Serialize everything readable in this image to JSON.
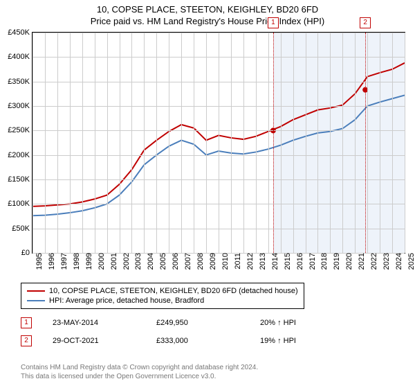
{
  "title": "10, COPSE PLACE, STEETON, KEIGHLEY, BD20 6FD",
  "subtitle": "Price paid vs. HM Land Registry's House Price Index (HPI)",
  "chart": {
    "type": "line",
    "xlim": [
      1995,
      2025
    ],
    "ylim": [
      0,
      450000
    ],
    "y_ticks": [
      0,
      50000,
      100000,
      150000,
      200000,
      250000,
      300000,
      350000,
      400000,
      450000
    ],
    "y_tick_labels": [
      "£0",
      "£50K",
      "£100K",
      "£150K",
      "£200K",
      "£250K",
      "£300K",
      "£350K",
      "£400K",
      "£450K"
    ],
    "x_ticks": [
      1995,
      1996,
      1997,
      1998,
      1999,
      2000,
      2001,
      2002,
      2003,
      2004,
      2005,
      2006,
      2007,
      2008,
      2009,
      2010,
      2011,
      2012,
      2013,
      2014,
      2015,
      2016,
      2017,
      2018,
      2019,
      2020,
      2021,
      2022,
      2023,
      2024,
      2025
    ],
    "grid_color": "#cccccc",
    "background_color": "#ffffff",
    "shaded_bands": [
      {
        "from": 2014.4,
        "to": 2025,
        "color": "#eef3fa"
      }
    ],
    "series": [
      {
        "name": "10, COPSE PLACE, STEETON, KEIGHLEY, BD20 6FD (detached house)",
        "color": "#c00000",
        "width": 2,
        "data": [
          [
            1995,
            95000
          ],
          [
            1996,
            96000
          ],
          [
            1997,
            98000
          ],
          [
            1998,
            100000
          ],
          [
            1999,
            104000
          ],
          [
            2000,
            110000
          ],
          [
            2001,
            118000
          ],
          [
            2002,
            140000
          ],
          [
            2003,
            170000
          ],
          [
            2004,
            210000
          ],
          [
            2005,
            230000
          ],
          [
            2006,
            248000
          ],
          [
            2007,
            262000
          ],
          [
            2008,
            255000
          ],
          [
            2009,
            230000
          ],
          [
            2010,
            240000
          ],
          [
            2011,
            235000
          ],
          [
            2012,
            232000
          ],
          [
            2013,
            238000
          ],
          [
            2014,
            248000
          ],
          [
            2015,
            258000
          ],
          [
            2016,
            272000
          ],
          [
            2017,
            282000
          ],
          [
            2018,
            292000
          ],
          [
            2019,
            296000
          ],
          [
            2020,
            302000
          ],
          [
            2021,
            325000
          ],
          [
            2022,
            360000
          ],
          [
            2023,
            368000
          ],
          [
            2024,
            375000
          ],
          [
            2025,
            388000
          ]
        ]
      },
      {
        "name": "HPI: Average price, detached house, Bradford",
        "color": "#4a7ebb",
        "width": 2,
        "data": [
          [
            1995,
            76000
          ],
          [
            1996,
            77000
          ],
          [
            1997,
            79000
          ],
          [
            1998,
            82000
          ],
          [
            1999,
            86000
          ],
          [
            2000,
            92000
          ],
          [
            2001,
            100000
          ],
          [
            2002,
            118000
          ],
          [
            2003,
            145000
          ],
          [
            2004,
            180000
          ],
          [
            2005,
            200000
          ],
          [
            2006,
            218000
          ],
          [
            2007,
            230000
          ],
          [
            2008,
            222000
          ],
          [
            2009,
            200000
          ],
          [
            2010,
            208000
          ],
          [
            2011,
            204000
          ],
          [
            2012,
            202000
          ],
          [
            2013,
            206000
          ],
          [
            2014,
            212000
          ],
          [
            2015,
            220000
          ],
          [
            2016,
            230000
          ],
          [
            2017,
            238000
          ],
          [
            2018,
            245000
          ],
          [
            2019,
            248000
          ],
          [
            2020,
            254000
          ],
          [
            2021,
            272000
          ],
          [
            2022,
            300000
          ],
          [
            2023,
            308000
          ],
          [
            2024,
            315000
          ],
          [
            2025,
            322000
          ]
        ]
      }
    ],
    "sale_markers": [
      {
        "index": "1",
        "x": 2014.4,
        "y": 249950,
        "line_color": "#c00000"
      },
      {
        "index": "2",
        "x": 2021.83,
        "y": 333000,
        "line_color": "#c00000"
      }
    ]
  },
  "legend": [
    {
      "color": "#c00000",
      "label": "10, COPSE PLACE, STEETON, KEIGHLEY, BD20 6FD (detached house)"
    },
    {
      "color": "#4a7ebb",
      "label": "HPI: Average price, detached house, Bradford"
    }
  ],
  "sales": [
    {
      "index": "1",
      "date": "23-MAY-2014",
      "price": "£249,950",
      "delta": "20% ↑ HPI"
    },
    {
      "index": "2",
      "date": "29-OCT-2021",
      "price": "£333,000",
      "delta": "19% ↑ HPI"
    }
  ],
  "footer": {
    "line1": "Contains HM Land Registry data © Crown copyright and database right 2024.",
    "line2": "This data is licensed under the Open Government Licence v3.0."
  },
  "typography": {
    "title_fontsize": 13,
    "axis_fontsize": 11,
    "legend_fontsize": 11,
    "footer_fontsize": 10
  }
}
